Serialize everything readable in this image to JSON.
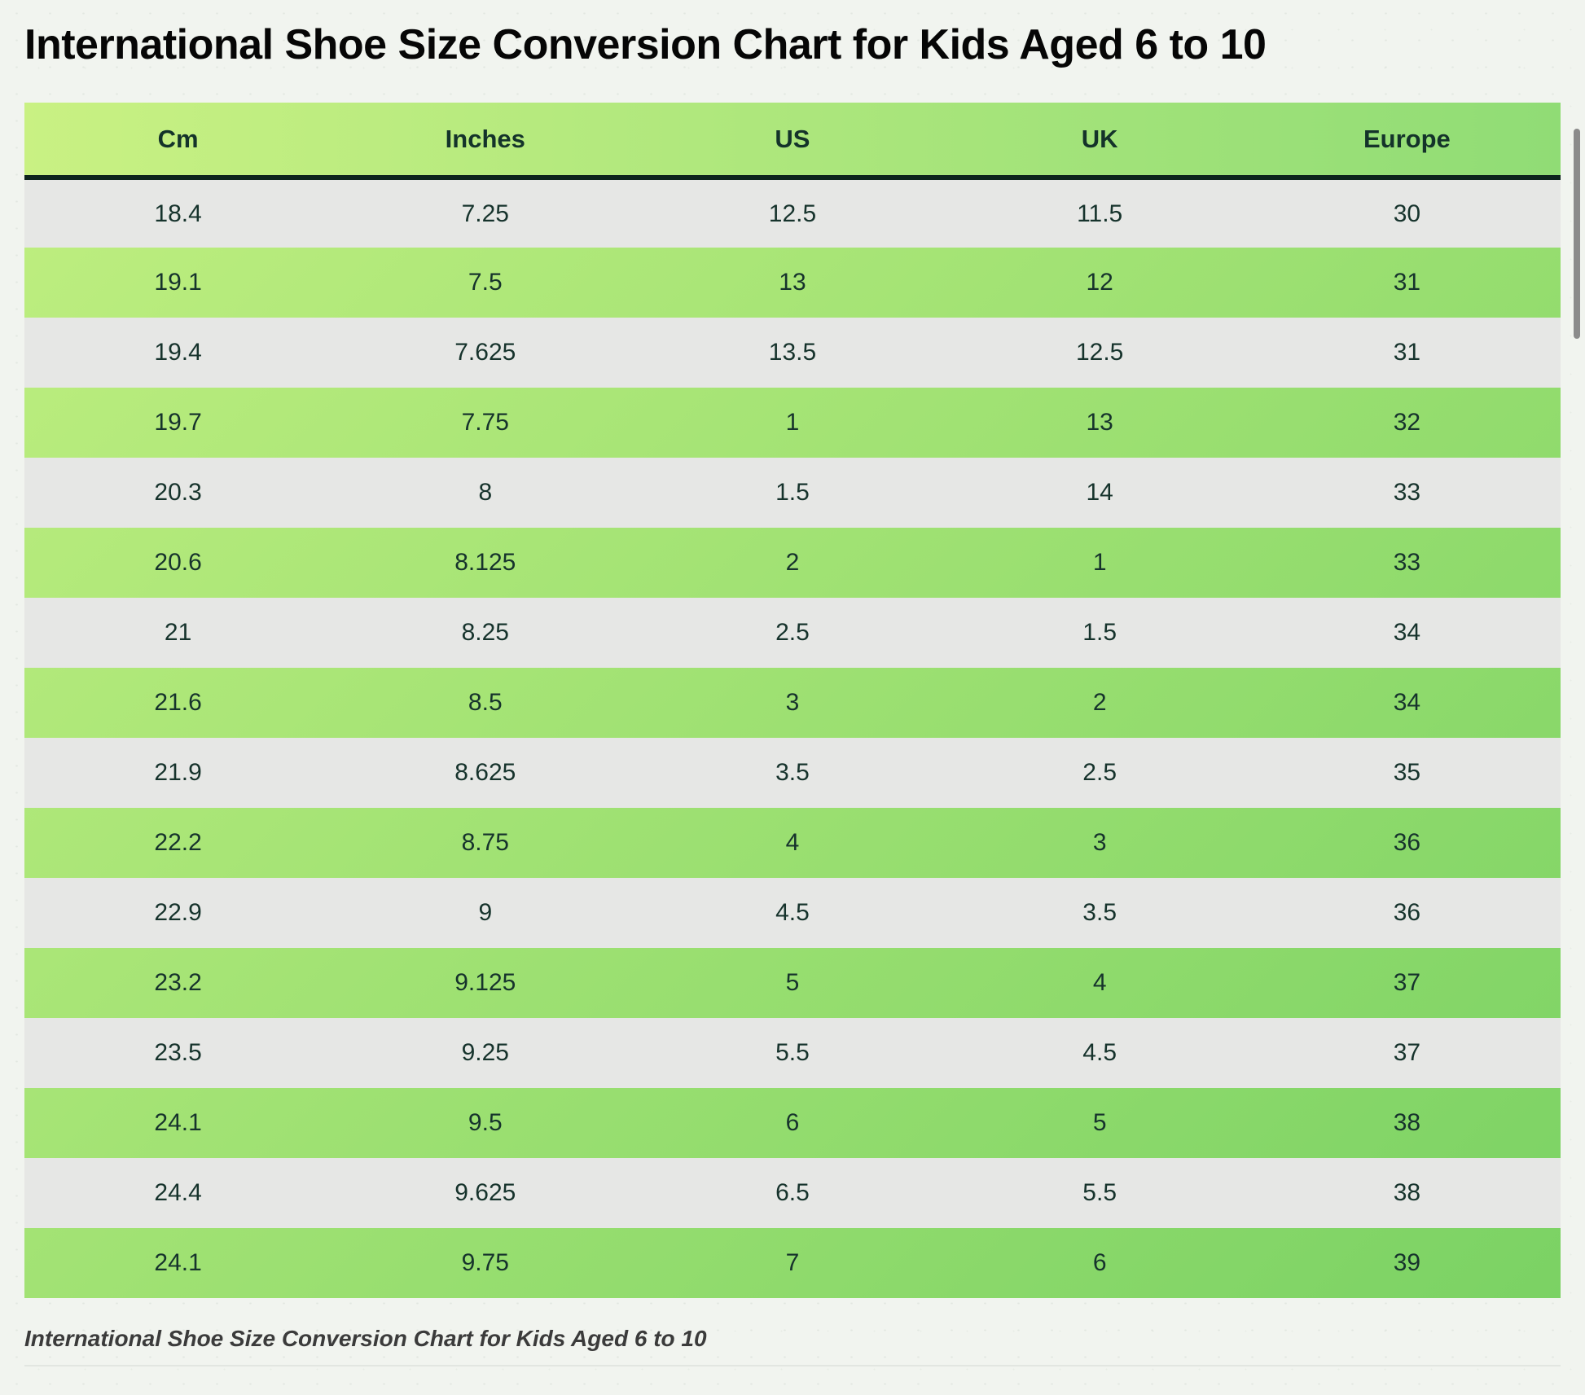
{
  "page": {
    "title": "International Shoe Size Conversion Chart for Kids Aged 6 to 10",
    "caption": "International Shoe Size Conversion Chart for Kids Aged 6 to 10"
  },
  "chart_data": {
    "type": "table",
    "title": "International Shoe Size Conversion Chart for Kids Aged 6 to 10",
    "columns": [
      "Cm",
      "Inches",
      "US",
      "UK",
      "Europe"
    ],
    "rows": [
      [
        "18.4",
        "7.25",
        "12.5",
        "11.5",
        "30"
      ],
      [
        "19.1",
        "7.5",
        "13",
        "12",
        "31"
      ],
      [
        "19.4",
        "7.625",
        "13.5",
        "12.5",
        "31"
      ],
      [
        "19.7",
        "7.75",
        "1",
        "13",
        "32"
      ],
      [
        "20.3",
        "8",
        "1.5",
        "14",
        "33"
      ],
      [
        "20.6",
        "8.125",
        "2",
        "1",
        "33"
      ],
      [
        "21",
        "8.25",
        "2.5",
        "1.5",
        "34"
      ],
      [
        "21.6",
        "8.5",
        "3",
        "2",
        "34"
      ],
      [
        "21.9",
        "8.625",
        "3.5",
        "2.5",
        "35"
      ],
      [
        "22.2",
        "8.75",
        "4",
        "3",
        "36"
      ],
      [
        "22.9",
        "9",
        "4.5",
        "3.5",
        "36"
      ],
      [
        "23.2",
        "9.125",
        "5",
        "4",
        "37"
      ],
      [
        "23.5",
        "9.25",
        "5.5",
        "4.5",
        "37"
      ],
      [
        "24.1",
        "9.5",
        "6",
        "5",
        "38"
      ],
      [
        "24.4",
        "9.625",
        "6.5",
        "5.5",
        "38"
      ],
      [
        "24.1",
        "9.75",
        "7",
        "6",
        "39"
      ]
    ],
    "row_striping": [
      "gray",
      "green"
    ],
    "layout_hints": {
      "grid": false,
      "legend": "none"
    }
  },
  "colors": {
    "page_background": "#f1f4ef",
    "header_gradient_start": "#c9f183",
    "header_gradient_end": "#90dc75",
    "body_gradient_start": "#c0ef80",
    "body_gradient_end": "#7bd264",
    "gray_row": "#e6e7e5",
    "header_border": "#0d241d",
    "header_text": "#14332a",
    "cell_text": "#16332c",
    "title_text": "#060606",
    "caption_text": "#3b3b3b",
    "divider": "#e2e6e1",
    "scrollbar_thumb": "#8b8b8b"
  }
}
